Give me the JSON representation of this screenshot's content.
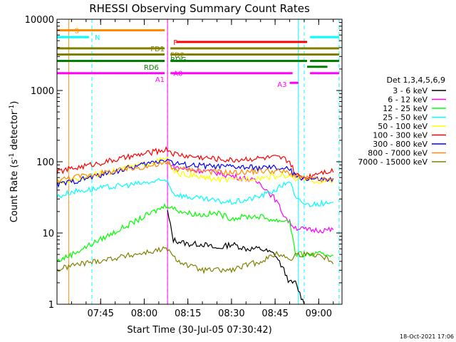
{
  "chart_data": {
    "type": "line",
    "title": "RHESSI Observing Summary Count Rates",
    "xlabel": "Start Time (30-Jul-05 07:30:42)",
    "ylabel_main": "Count Rate (s",
    "ylabel_sup1": "-1",
    "ylabel_mid": " detector",
    "ylabel_sup2": "-1",
    "ylabel_end": ")",
    "yscale": "log",
    "xlim": [
      "07:30",
      "09:08"
    ],
    "ylim": [
      1,
      10000
    ],
    "x_ticks": [
      "07:45",
      "08:00",
      "08:15",
      "08:30",
      "08:45",
      "09:00"
    ],
    "y_ticks": [
      "1",
      "10",
      "100",
      "1000",
      "10000"
    ],
    "timestamp": "18-Oct-2021 17:06",
    "legend_title": "Det 1,3,4,5,6,9",
    "series": [
      {
        "name": "3 - 6 keV",
        "color": "#000000",
        "x": [
          "08:08",
          "08:10",
          "08:15",
          "08:20",
          "08:25",
          "08:30",
          "08:35",
          "08:40",
          "08:45",
          "08:48",
          "08:50",
          "08:52",
          "08:55"
        ],
        "y": [
          20,
          8,
          7,
          7,
          6,
          7,
          6,
          6,
          5,
          3,
          2,
          2,
          1
        ]
      },
      {
        "name": "6 - 12 keV",
        "color": "#ff00ff",
        "x": [
          "08:08",
          "08:10",
          "08:15",
          "08:20",
          "08:25",
          "08:30",
          "08:35",
          "08:40",
          "08:45",
          "08:48",
          "08:50",
          "08:52",
          "08:56",
          "09:00",
          "09:05"
        ],
        "y": [
          105,
          85,
          78,
          75,
          70,
          63,
          58,
          50,
          30,
          18,
          14,
          12,
          11,
          11,
          11
        ]
      },
      {
        "name": "12 - 25 keV",
        "color": "#00ff00",
        "x": [
          "07:30",
          "07:35",
          "08:08",
          "08:10",
          "08:15",
          "08:20",
          "08:25",
          "08:30",
          "08:35",
          "08:40",
          "08:45",
          "08:48",
          "08:50",
          "08:52",
          "08:55",
          "09:00",
          "09:05"
        ],
        "y": [
          4,
          5,
          25,
          22,
          19,
          18,
          19,
          16,
          17,
          17,
          15,
          15,
          15,
          5,
          5,
          5,
          5
        ]
      },
      {
        "name": "25 - 50 keV",
        "color": "#00ffff",
        "x": [
          "07:30",
          "07:35",
          "08:08",
          "08:10",
          "08:15",
          "08:20",
          "08:25",
          "08:30",
          "08:35",
          "08:40",
          "08:45",
          "08:48",
          "08:50",
          "08:52",
          "08:56",
          "09:00",
          "09:05"
        ],
        "y": [
          32,
          38,
          55,
          36,
          32,
          30,
          28,
          27,
          29,
          33,
          40,
          48,
          55,
          30,
          25,
          26,
          25
        ]
      },
      {
        "name": "50 - 100 keV",
        "color": "#ffff00",
        "x": [
          "07:30",
          "07:35",
          "08:08",
          "08:10",
          "08:15",
          "08:20",
          "08:25",
          "08:30",
          "08:35",
          "08:40",
          "08:45",
          "08:48",
          "08:50",
          "08:52",
          "08:56",
          "09:00",
          "09:05"
        ],
        "y": [
          50,
          55,
          110,
          70,
          65,
          60,
          57,
          55,
          58,
          60,
          62,
          65,
          62,
          58,
          55,
          53,
          52
        ]
      },
      {
        "name": "100 - 300 keV",
        "color": "#ff0000",
        "x": [
          "07:30",
          "07:35",
          "08:08",
          "08:10",
          "08:15",
          "08:20",
          "08:25",
          "08:30",
          "08:35",
          "08:40",
          "08:45",
          "08:48",
          "08:50",
          "08:52",
          "08:56",
          "09:00",
          "09:05"
        ],
        "y": [
          72,
          80,
          150,
          130,
          120,
          115,
          110,
          105,
          110,
          112,
          115,
          110,
          100,
          65,
          60,
          72,
          75
        ]
      },
      {
        "name": "300 - 800 keV",
        "color": "#0000ff",
        "x": [
          "07:30",
          "07:35",
          "08:08",
          "08:10",
          "08:15",
          "08:20",
          "08:25",
          "08:30",
          "08:35",
          "08:40",
          "08:45",
          "08:48",
          "08:50",
          "08:52",
          "08:56",
          "09:00",
          "09:05"
        ],
        "y": [
          48,
          52,
          110,
          95,
          90,
          88,
          85,
          85,
          83,
          82,
          82,
          80,
          78,
          62,
          58,
          56,
          55
        ]
      },
      {
        "name": "800 - 7000 keV",
        "color": "#ff8c00",
        "x": [
          "07:30",
          "07:35",
          "08:08",
          "08:10",
          "08:15",
          "08:20",
          "08:25",
          "08:30",
          "08:35",
          "08:40",
          "08:45",
          "08:48",
          "08:50",
          "08:52",
          "08:56",
          "09:00",
          "09:05"
        ],
        "y": [
          55,
          60,
          95,
          80,
          78,
          75,
          72,
          70,
          72,
          74,
          74,
          72,
          70,
          62,
          58,
          56,
          55
        ]
      },
      {
        "name": "7000 - 15000 keV",
        "color": "#808000",
        "x": [
          "07:30",
          "07:35",
          "08:08",
          "08:10",
          "08:15",
          "08:20",
          "08:25",
          "08:30",
          "08:35",
          "08:40",
          "08:45",
          "08:48",
          "08:50",
          "08:52",
          "08:55",
          "09:00",
          "09:05"
        ],
        "y": [
          3,
          3.5,
          6,
          4.5,
          3.5,
          3,
          3,
          3,
          3.5,
          4,
          5,
          5,
          4,
          5,
          5,
          5,
          4
        ]
      }
    ],
    "flags": [
      {
        "label": "S",
        "color": "#ff8c00",
        "segments": [
          [
            "07:30",
            "08:07"
          ]
        ],
        "y": 7000
      },
      {
        "label": "N",
        "color": "#00ffff",
        "segments": [
          [
            "07:30",
            "07:41"
          ],
          [
            "08:57",
            "09:07"
          ]
        ],
        "y": 5600
      },
      {
        "label": "F",
        "color": "#ff0000",
        "segments": [
          [
            "08:11",
            "08:56"
          ]
        ],
        "y": 4800
      },
      {
        "label": "FD1",
        "color": "#808000",
        "segments": [
          [
            "07:30",
            "08:07"
          ],
          [
            "08:09",
            "09:07"
          ]
        ],
        "y": 3900
      },
      {
        "label": "FD2",
        "color": "#808000",
        "segments": [
          [
            "07:30",
            "08:07"
          ],
          [
            "08:09",
            "09:07"
          ]
        ],
        "y": 3200
      },
      {
        "label": "RD6",
        "color": "#008000",
        "segments": [
          [
            "07:30",
            "08:07"
          ],
          [
            "08:09",
            "08:56"
          ],
          [
            "08:57",
            "09:07"
          ]
        ],
        "y": 2600
      },
      {
        "label": "RD6_seg2",
        "color": "#008000",
        "segments": [
          [
            "08:56",
            "09:03"
          ]
        ],
        "y": 2150
      },
      {
        "label": "A0",
        "color": "#ff00ff",
        "segments": [
          [
            "07:30",
            "08:07"
          ],
          [
            "08:09",
            "08:51"
          ],
          [
            "08:57",
            "09:07"
          ]
        ],
        "y": 1750
      },
      {
        "label": "A3",
        "color": "#ff00ff",
        "segments": [
          [
            "08:50",
            "08:53"
          ]
        ],
        "y": 1280
      }
    ],
    "flag_labels": {
      "S": "S",
      "N": "N",
      "F": "F",
      "FD1": "FD1",
      "FD2": "FD2",
      "RD6": "RD6",
      "RDG": "RDG",
      "A0": "A0",
      "A1": "A1",
      "A3": "A3"
    },
    "vlines": [
      {
        "time": "07:30",
        "color": "#00ffff",
        "style": "solid"
      },
      {
        "time": "07:34",
        "color": "#ff8c00",
        "style": "solid"
      },
      {
        "time": "07:42",
        "color": "#00ffff",
        "style": "dashed"
      },
      {
        "time": "08:08",
        "color": "#ff8c00",
        "style": "dashed"
      },
      {
        "time": "08:08",
        "color": "#ff00ff",
        "style": "solid"
      },
      {
        "time": "08:53",
        "color": "#00ffff",
        "style": "solid"
      },
      {
        "time": "08:55",
        "color": "#00ffff",
        "style": "dashed"
      },
      {
        "time": "09:07",
        "color": "#00ffff",
        "style": "dashed"
      }
    ]
  }
}
